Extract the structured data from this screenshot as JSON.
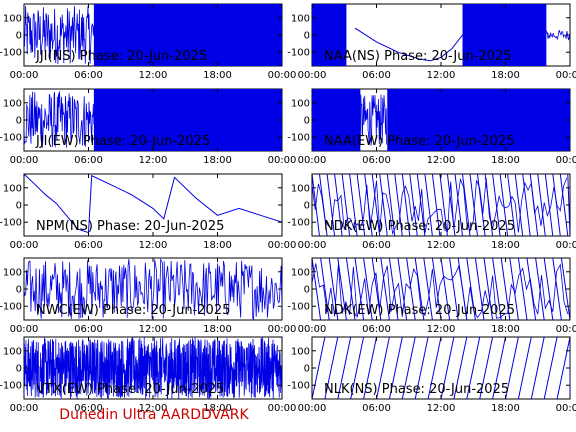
{
  "footer": "Dunedin Ultra AARDDVARK",
  "colors": {
    "signal": "#0000e6",
    "axis": "#000000",
    "footer": "#cc0000",
    "background": "#ffffff"
  },
  "chart_data": [
    {
      "type": "line",
      "title": "JJI(NS) Phase: 20-Jun-2025",
      "xlim": [
        0,
        24
      ],
      "ylim": [
        -180,
        180
      ],
      "xticks": [
        "00:00",
        "06:00",
        "12:00",
        "18:00",
        "00:00"
      ],
      "yticks": [
        "100",
        "0",
        "-100"
      ],
      "behavior": "phase wrapping -180..180; sparse segments 00:00-06:30, dense solid band 06:30-24:00",
      "series": [
        {
          "x": [
            0,
            1,
            2,
            3,
            4,
            5,
            6,
            6.5,
            12,
            18,
            24
          ],
          "y": [
            120,
            -80,
            150,
            40,
            -120,
            90,
            0,
            50,
            50,
            50,
            50
          ]
        }
      ]
    },
    {
      "type": "line",
      "title": "NAA(NS) Phase: 20-Jun-2025",
      "xlim": [
        0,
        24
      ],
      "ylim": [
        -180,
        180
      ],
      "xticks": [
        "00:00",
        "06:00",
        "12:00",
        "18:00",
        "00:00"
      ],
      "yticks": [
        "100",
        "0",
        "-100"
      ],
      "behavior": "dense band 00:00-03:00, smooth arc descending to about -150 near 11:00 and rising, dense band 14:00-22:00, steady near 0 after 22:00",
      "series": [
        {
          "x": [
            0,
            3,
            4,
            6,
            8,
            10,
            11,
            12,
            13,
            14,
            18,
            22,
            23,
            24
          ],
          "y": [
            0,
            80,
            40,
            -40,
            -100,
            -140,
            -150,
            -130,
            -80,
            0,
            0,
            10,
            20,
            0
          ]
        }
      ]
    },
    {
      "type": "line",
      "title": "JJI(EW) Phase: 20-Jun-2025",
      "xlim": [
        0,
        24
      ],
      "ylim": [
        -180,
        180
      ],
      "xticks": [
        "00:00",
        "06:00",
        "12:00",
        "18:00",
        "00:00"
      ],
      "yticks": [
        "100",
        "0",
        "-100"
      ],
      "behavior": "phase wrapping; sparse before 06:30, dense solid band 06:30-24:00",
      "series": [
        {
          "x": [
            0,
            2,
            4,
            6,
            6.5,
            24
          ],
          "y": [
            100,
            -100,
            150,
            -50,
            0,
            0
          ]
        }
      ]
    },
    {
      "type": "line",
      "title": "NAA(EW) Phase: 20-Jun-2025",
      "xlim": [
        0,
        24
      ],
      "ylim": [
        -180,
        180
      ],
      "xticks": [
        "00:00",
        "06:00",
        "12:00",
        "18:00",
        "00:00"
      ],
      "yticks": [
        "100",
        "0",
        "-100"
      ],
      "behavior": "dense band 00:00-04:30, noisy 04:30-07:00, dense band 07:00-24:00",
      "series": [
        {
          "x": [
            0,
            4.5,
            5,
            6,
            7,
            24
          ],
          "y": [
            0,
            50,
            100,
            20,
            0,
            0
          ]
        }
      ]
    },
    {
      "type": "line",
      "title": "NPM(NS) Phase: 20-Jun-2025",
      "xlim": [
        0,
        24
      ],
      "ylim": [
        -180,
        180
      ],
      "xticks": [
        "00:00",
        "06:00",
        "12:00",
        "18:00",
        "00:00"
      ],
      "yticks": [
        "100",
        "0",
        "-100"
      ],
      "behavior": "slow descending drift with occasional wraps",
      "series": [
        {
          "x": [
            0,
            1,
            2,
            3,
            5,
            6,
            6.3,
            8,
            10,
            12,
            13,
            14,
            16,
            18,
            20,
            22,
            24
          ],
          "y": [
            180,
            120,
            60,
            10,
            -140,
            -160,
            170,
            120,
            60,
            -20,
            -80,
            160,
            40,
            -60,
            -20,
            -60,
            -100
          ]
        }
      ]
    },
    {
      "type": "line",
      "title": "NDK(EW) Phase: 20-Jun-2025",
      "xlim": [
        0,
        24
      ],
      "ylim": [
        -180,
        180
      ],
      "xticks": [
        "00:00",
        "06:00",
        "12:00",
        "18:00",
        "00:00"
      ],
      "yticks": [
        "100",
        "0",
        "-100"
      ],
      "behavior": "rapid sawtooth phase wrapping throughout the day",
      "series": [
        {
          "x": [
            0,
            0.7,
            1.4,
            2.1,
            2.8,
            3.5,
            4.2,
            4.9,
            5.6,
            6.3
          ],
          "y": [
            180,
            -180,
            180,
            -180,
            180,
            -180,
            180,
            -180,
            180,
            -180
          ]
        }
      ]
    },
    {
      "type": "line",
      "title": "NWC(EW) Phase: 20-Jun-2025",
      "xlim": [
        0,
        24
      ],
      "ylim": [
        -180,
        180
      ],
      "xticks": [
        "00:00",
        "06:00",
        "12:00",
        "18:00",
        "00:00"
      ],
      "yticks": [
        "100",
        "0",
        "-100"
      ],
      "behavior": "noisy phase with frequent wraps, dense mid-day",
      "series": [
        {
          "x": [
            0,
            1,
            2,
            3,
            4,
            5,
            6,
            7,
            8,
            9,
            10
          ],
          "y": [
            100,
            -50,
            150,
            -150,
            60,
            -100,
            120,
            -20,
            170,
            -170,
            40
          ]
        }
      ]
    },
    {
      "type": "line",
      "title": "NDK(EW) Phase: 20-Jun-2025",
      "xlim": [
        0,
        24
      ],
      "ylim": [
        -180,
        180
      ],
      "xticks": [
        "00:00",
        "06:00",
        "12:00",
        "18:00",
        "00:00"
      ],
      "yticks": [
        "100",
        "0",
        "-100"
      ],
      "behavior": "rapid sawtooth phase wrapping throughout the day",
      "series": [
        {
          "x": [
            0,
            0.8,
            1.6,
            2.4,
            3.2,
            4.0,
            4.8,
            5.6
          ],
          "y": [
            180,
            -180,
            180,
            -180,
            180,
            -180,
            180,
            -180
          ]
        }
      ]
    },
    {
      "type": "line",
      "title": "VTX(EW) Phase: 20-Jun-2025",
      "xlim": [
        0,
        24
      ],
      "ylim": [
        -180,
        180
      ],
      "xticks": [
        "00:00",
        "06:00",
        "12:00",
        "18:00",
        "00:00"
      ],
      "yticks": [
        "100",
        "0",
        "-100"
      ],
      "behavior": "very dense noisy phase filling the full range all day",
      "series": [
        {
          "x": [
            0,
            6,
            12,
            18,
            24
          ],
          "y": [
            0,
            0,
            0,
            0,
            0
          ]
        }
      ]
    },
    {
      "type": "line",
      "title": "NLK(NS) Phase: 20-Jun-2025",
      "xlim": [
        0,
        24
      ],
      "ylim": [
        -180,
        180
      ],
      "xticks": [
        "00:00",
        "06:00",
        "12:00",
        "18:00",
        "00:00"
      ],
      "yticks": [
        "100",
        "0",
        "-100"
      ],
      "behavior": "regular sawtooth: near-vertical rise then linear decline, period about 1.2 h",
      "series": [
        {
          "x": [
            0,
            1.2,
            2.4,
            3.6,
            4.8,
            6.0,
            7.2,
            8.4,
            9.6,
            10.8,
            12.0
          ],
          "y": [
            180,
            -180,
            180,
            -180,
            180,
            -180,
            180,
            -180,
            180,
            -180,
            180
          ]
        }
      ]
    }
  ]
}
